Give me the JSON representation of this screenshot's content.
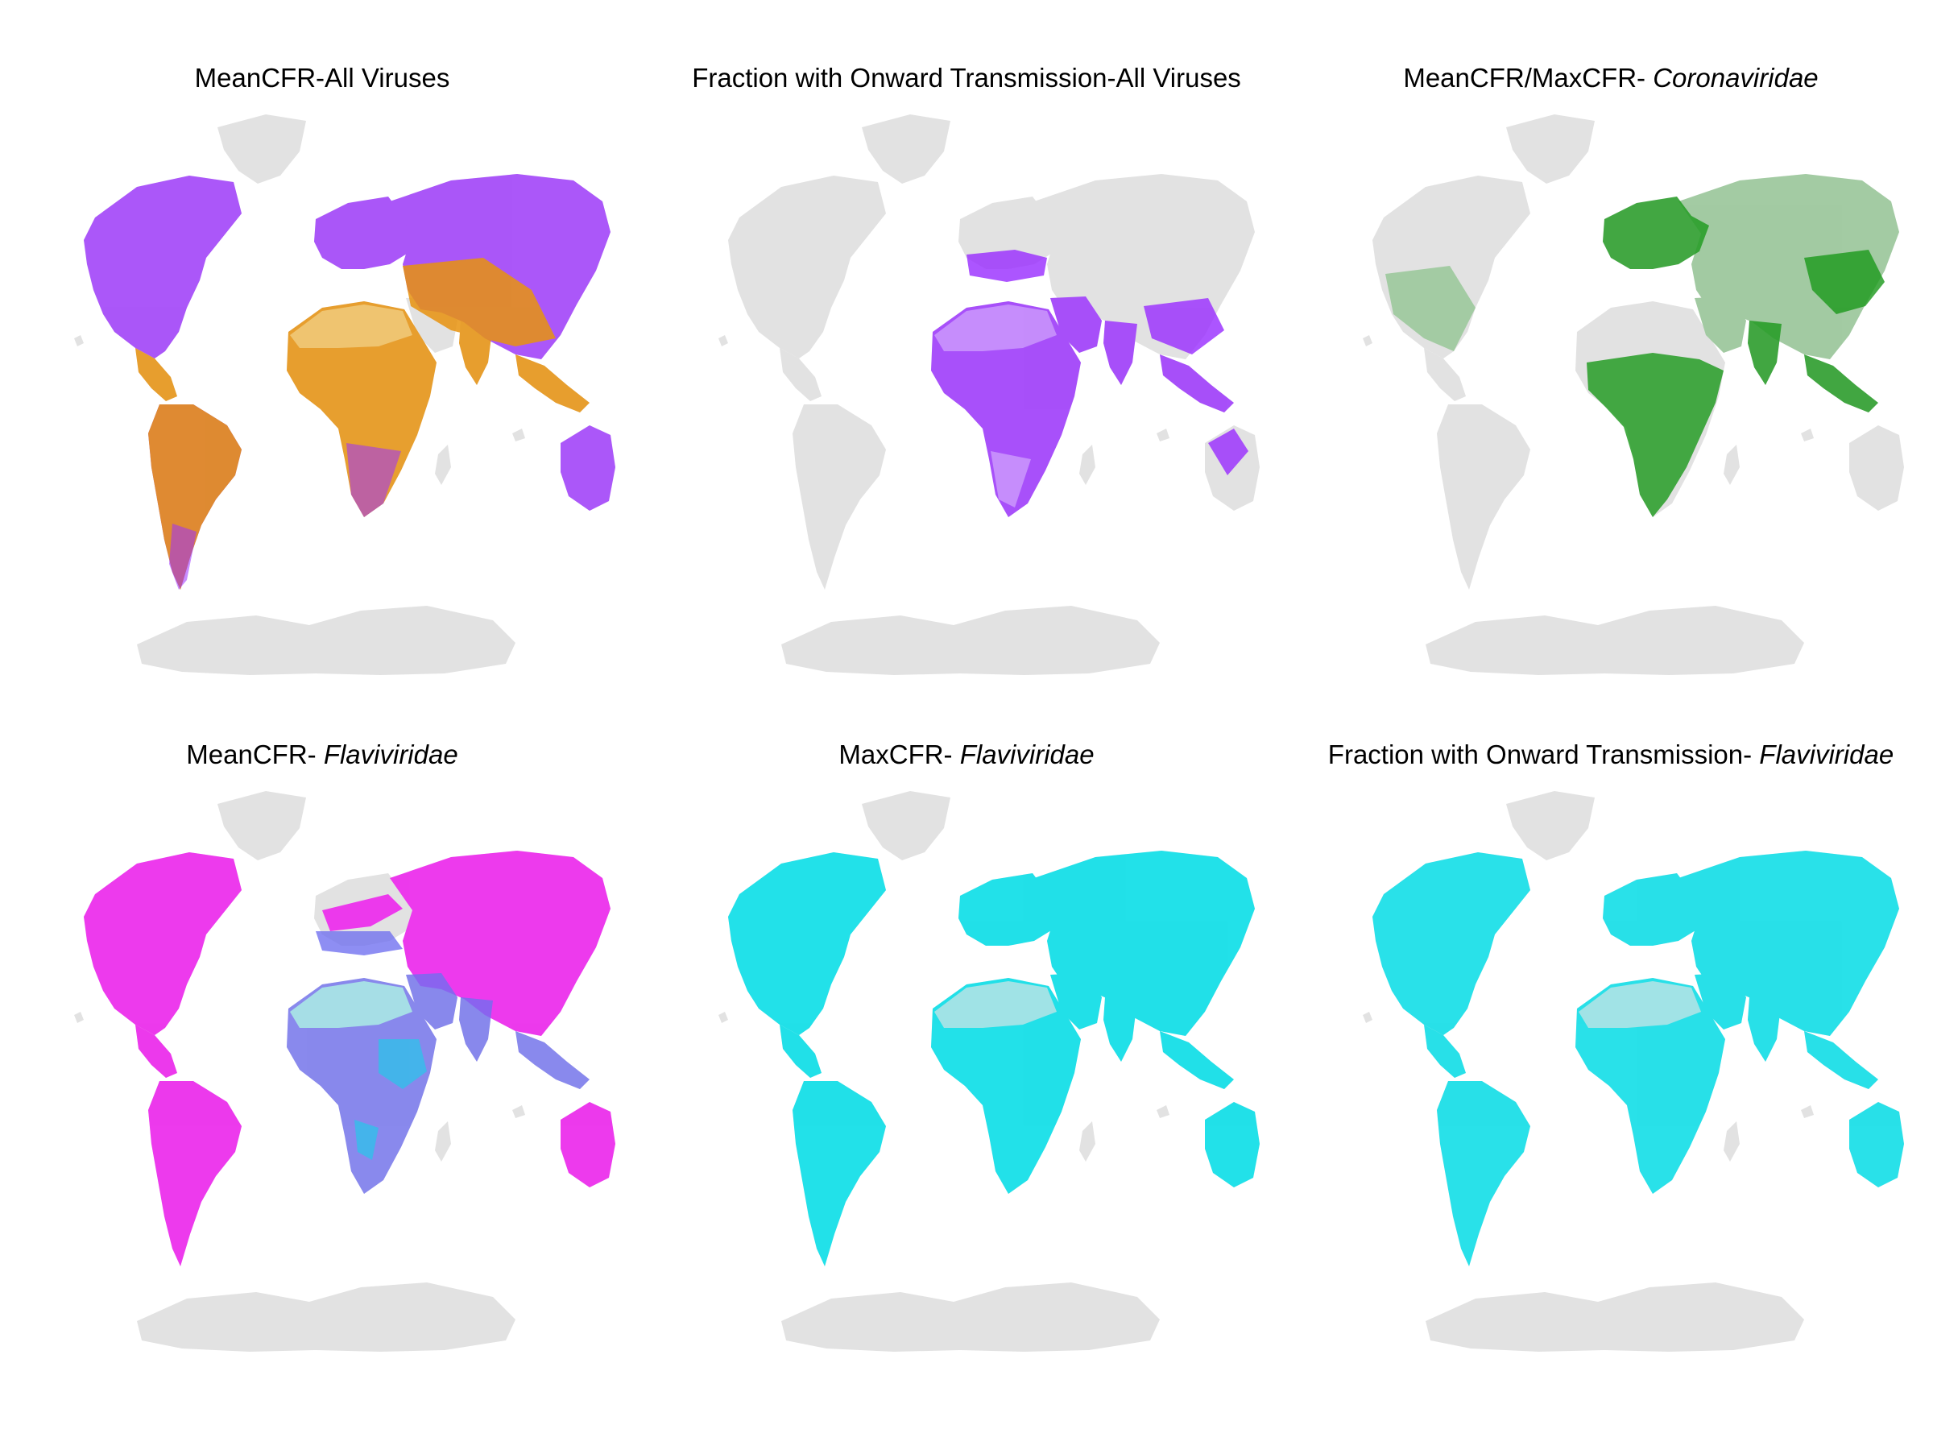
{
  "colors": {
    "land": "#e2e2e2",
    "purple": "#9b30ff",
    "orange": "#e8930f",
    "sand": "#f0c878",
    "green": "#1e9a1e",
    "magenta": "#ee22ee",
    "blue": "#6f6ff0",
    "cyan": "#00e0ea",
    "pale-cyan": "#a8e3e6"
  },
  "panels": [
    {
      "title_main": "MeanCFR-All Viruses",
      "title_taxon": ""
    },
    {
      "title_main": "Fraction with Onward Transmission-All Viruses",
      "title_taxon": ""
    },
    {
      "title_main": "MeanCFR/MaxCFR- ",
      "title_taxon": "Coronaviridae"
    },
    {
      "title_main": "MeanCFR- ",
      "title_taxon": "Flaviviridae"
    },
    {
      "title_main": "MaxCFR- ",
      "title_taxon": "Flaviviridae"
    },
    {
      "title_main": "Fraction with Onward Transmission- ",
      "title_taxon": "Flaviviridae"
    }
  ]
}
